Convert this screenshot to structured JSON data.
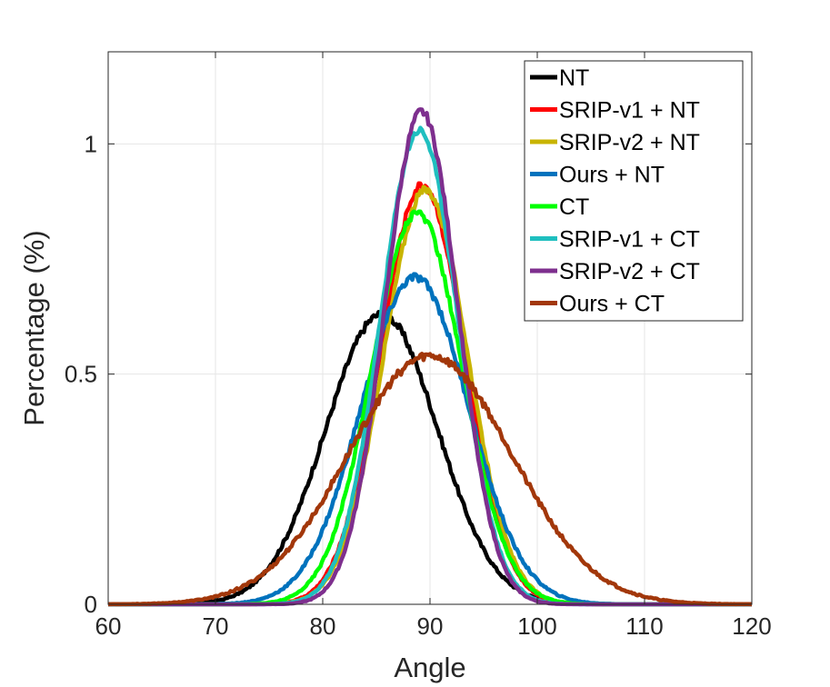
{
  "chart_data": {
    "type": "line",
    "title": "",
    "xlabel": "Angle",
    "ylabel": "Percentage (%)",
    "xlim": [
      60,
      120
    ],
    "ylim": [
      0,
      1.2
    ],
    "xticks": [
      60,
      70,
      80,
      90,
      100,
      110,
      120
    ],
    "yticks": [
      0,
      0.5,
      1
    ],
    "xtick_labels": [
      "60",
      "70",
      "80",
      "90",
      "100",
      "110",
      "120"
    ],
    "ytick_labels": [
      "0",
      "0.5",
      "1"
    ],
    "grid": true,
    "legend_position": "top-right",
    "series": [
      {
        "name": "NT",
        "color": "#000000",
        "peak_x": 85.5,
        "peak_y": 0.63,
        "sigma": 5.2
      },
      {
        "name": "SRIP-v1 + NT",
        "color": "#ff0000",
        "peak_x": 89.3,
        "peak_y": 0.91,
        "sigma": 3.9
      },
      {
        "name": "SRIP-v2 + NT",
        "color": "#c8b400",
        "peak_x": 89.6,
        "peak_y": 0.9,
        "sigma": 3.9
      },
      {
        "name": "Ours + NT",
        "color": "#0072bd",
        "peak_x": 88.6,
        "peak_y": 0.71,
        "sigma": 5.0
      },
      {
        "name": "CT",
        "color": "#00ff00",
        "peak_x": 88.8,
        "peak_y": 0.85,
        "sigma": 4.2
      },
      {
        "name": "SRIP-v1 + CT",
        "color": "#1fbfbf",
        "peak_x": 89.0,
        "peak_y": 1.03,
        "sigma": 3.6
      },
      {
        "name": "SRIP-v2 + CT",
        "color": "#7e2f8e",
        "peak_x": 89.2,
        "peak_y": 1.07,
        "sigma": 3.4
      },
      {
        "name": "Ours + CT",
        "color": "#a2370a",
        "peak_x": 90.0,
        "peak_y": 0.54,
        "sigma": 7.6
      }
    ]
  }
}
